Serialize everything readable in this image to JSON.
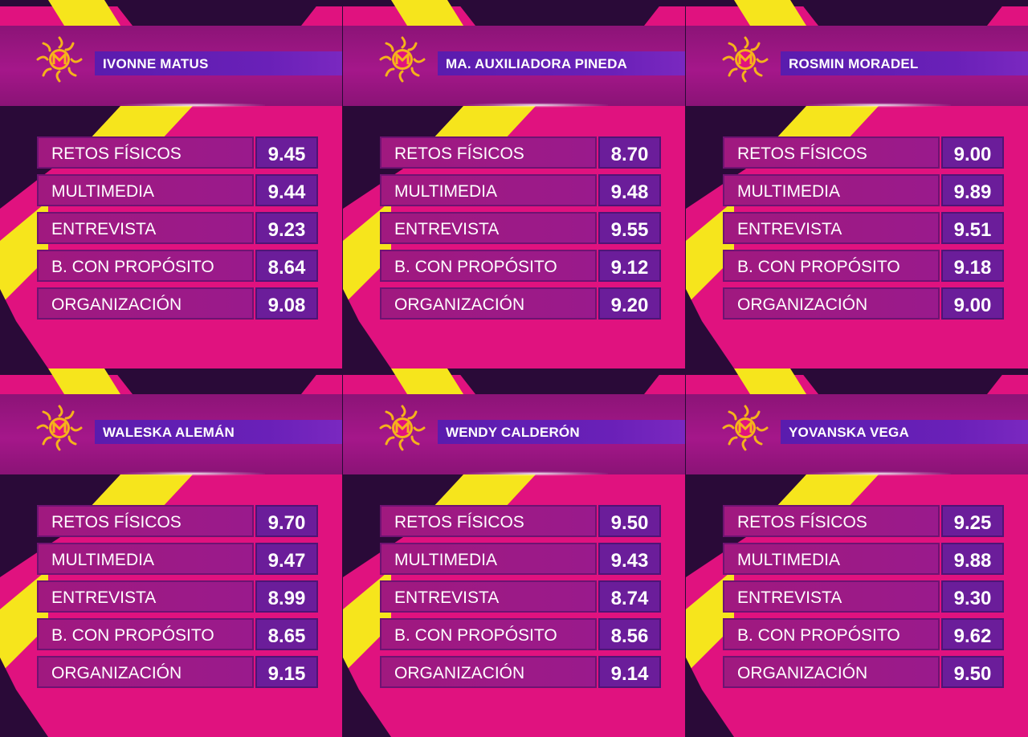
{
  "colors": {
    "background_magenta": "#e0127f",
    "dark_purple": "#2a0a38",
    "accent_yellow": "#f6e51c",
    "name_bar_purple": "#5a1cae",
    "score_purple": "#6b1d9a",
    "logo_gold": "#f5b21b"
  },
  "logo_icon": "sun-emblem-icon",
  "panels": [
    {
      "name": "IVONNE MATUS",
      "rows": [
        {
          "category": "RETOS FÍSICOS",
          "score": "9.45"
        },
        {
          "category": "MULTIMEDIA",
          "score": "9.44"
        },
        {
          "category": "ENTREVISTA",
          "score": "9.23"
        },
        {
          "category": "B. CON PROPÓSITO",
          "score": "8.64"
        },
        {
          "category": "ORGANIZACIÓN",
          "score": "9.08"
        }
      ]
    },
    {
      "name": "MA.  AUXILIADORA PINEDA",
      "rows": [
        {
          "category": "RETOS FÍSICOS",
          "score": "8.70"
        },
        {
          "category": "MULTIMEDIA",
          "score": "9.48"
        },
        {
          "category": "ENTREVISTA",
          "score": "9.55"
        },
        {
          "category": "B. CON PROPÓSITO",
          "score": "9.12"
        },
        {
          "category": "ORGANIZACIÓN",
          "score": "9.20"
        }
      ]
    },
    {
      "name": "ROSMIN MORADEL",
      "rows": [
        {
          "category": "RETOS FÍSICOS",
          "score": "9.00"
        },
        {
          "category": "MULTIMEDIA",
          "score": "9.89"
        },
        {
          "category": "ENTREVISTA",
          "score": "9.51"
        },
        {
          "category": "B. CON PROPÓSITO",
          "score": "9.18"
        },
        {
          "category": "ORGANIZACIÓN",
          "score": "9.00"
        }
      ]
    },
    {
      "name": "WALESKA ALEMÁN",
      "rows": [
        {
          "category": "RETOS FÍSICOS",
          "score": "9.70"
        },
        {
          "category": "MULTIMEDIA",
          "score": "9.47"
        },
        {
          "category": "ENTREVISTA",
          "score": "8.99"
        },
        {
          "category": "B. CON PROPÓSITO",
          "score": "8.65"
        },
        {
          "category": "ORGANIZACIÓN",
          "score": "9.15"
        }
      ]
    },
    {
      "name": "WENDY CALDERÓN",
      "rows": [
        {
          "category": "RETOS FÍSICOS",
          "score": "9.50"
        },
        {
          "category": "MULTIMEDIA",
          "score": "9.43"
        },
        {
          "category": "ENTREVISTA",
          "score": "8.74"
        },
        {
          "category": "B. CON PROPÓSITO",
          "score": "8.56"
        },
        {
          "category": "ORGANIZACIÓN",
          "score": "9.14"
        }
      ]
    },
    {
      "name": "YOVANSKA VEGA",
      "rows": [
        {
          "category": "RETOS FÍSICOS",
          "score": "9.25"
        },
        {
          "category": "MULTIMEDIA",
          "score": "9.88"
        },
        {
          "category": "ENTREVISTA",
          "score": "9.30"
        },
        {
          "category": "B. CON PROPÓSITO",
          "score": "9.62"
        },
        {
          "category": "ORGANIZACIÓN",
          "score": "9.50"
        }
      ]
    }
  ]
}
